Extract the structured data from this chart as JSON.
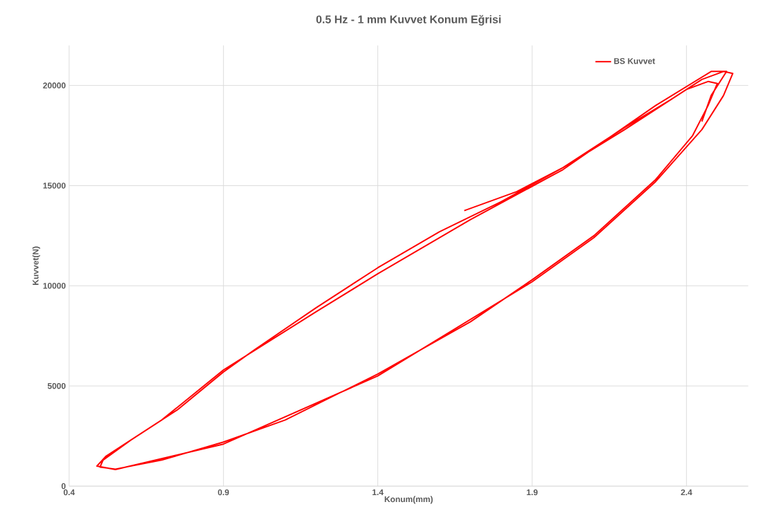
{
  "chart_data": {
    "type": "line",
    "title": "0.5 Hz - 1 mm Kuvvet Konum Eğrisi",
    "xlabel": "Konum(mm)",
    "ylabel": "Kuvvet(N)",
    "xlim": [
      0.4,
      2.6
    ],
    "ylim": [
      0,
      22000
    ],
    "xticks": [
      0.4,
      0.9,
      1.4,
      1.9,
      2.4
    ],
    "yticks": [
      0,
      5000,
      10000,
      15000,
      20000
    ],
    "grid": true,
    "legend": "top right",
    "series": [
      {
        "name": "BS Kuvvet",
        "color": "#ff0000",
        "x": [
          1.68,
          1.85,
          2.0,
          2.2,
          2.4,
          2.47,
          2.5,
          2.47,
          2.42,
          2.3,
          2.1,
          1.9,
          1.7,
          1.4,
          1.1,
          0.9,
          0.7,
          0.55,
          0.5,
          0.51,
          0.6,
          0.75,
          0.9,
          1.0,
          1.2,
          1.4,
          1.6,
          1.8,
          2.0,
          2.2,
          2.35,
          2.45,
          2.52,
          2.55,
          2.52,
          2.45,
          2.3,
          2.1,
          1.9,
          1.4,
          0.9,
          0.55,
          0.49,
          0.52,
          0.7,
          0.9,
          1.2,
          1.4,
          1.7,
          2.0,
          2.3,
          2.48,
          2.53,
          2.48,
          2.45
        ],
        "values": [
          13750,
          14700,
          15900,
          17800,
          19800,
          20200,
          20100,
          19000,
          17500,
          15300,
          12500,
          10300,
          8200,
          5600,
          3300,
          2200,
          1300,
          850,
          950,
          1300,
          2300,
          3800,
          5700,
          6800,
          8900,
          10900,
          12700,
          14200,
          15900,
          17900,
          19300,
          20300,
          20700,
          20600,
          19500,
          17800,
          15200,
          12400,
          10200,
          5500,
          2100,
          830,
          1000,
          1500,
          3300,
          5800,
          8700,
          10600,
          13300,
          15800,
          19000,
          20700,
          20700,
          19500,
          18200
        ]
      }
    ]
  }
}
